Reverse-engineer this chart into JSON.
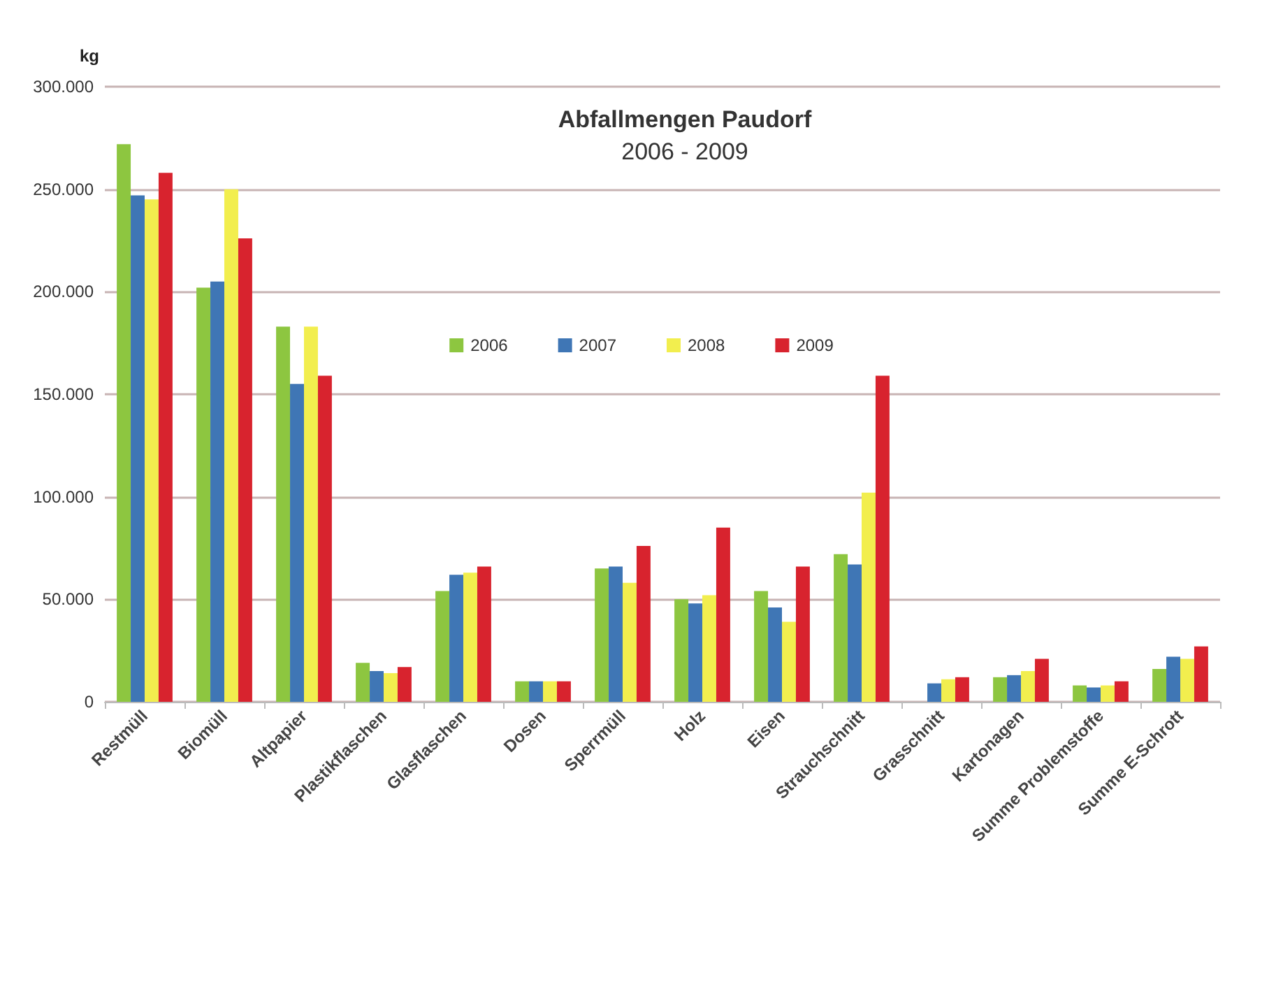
{
  "chart_data": {
    "type": "bar",
    "title": "Abfallmengen Paudorf",
    "subtitle": "2006 - 2009",
    "ylabel": "kg",
    "categories": [
      "Restmüll",
      "Biomüll",
      "Altpapier",
      "Plastikflaschen",
      "Glasflaschen",
      "Dosen",
      "Sperrmüll",
      "Holz",
      "Eisen",
      "Strauchschnitt",
      "Grasschnitt",
      "Kartonagen",
      "Summe Problemstoffe",
      "Summe E-Schrott"
    ],
    "series": [
      {
        "name": "2006",
        "color": "#8dc640",
        "values": [
          272000,
          202000,
          183000,
          19000,
          54000,
          10000,
          65000,
          50000,
          54000,
          72000,
          0,
          12000,
          8000,
          16000
        ]
      },
      {
        "name": "2007",
        "color": "#3f76b5",
        "values": [
          247000,
          205000,
          155000,
          15000,
          62000,
          10000,
          66000,
          48000,
          46000,
          67000,
          9000,
          13000,
          7000,
          22000
        ]
      },
      {
        "name": "2008",
        "color": "#f2ee4e",
        "values": [
          245000,
          250000,
          183000,
          14000,
          63000,
          10000,
          58000,
          52000,
          39000,
          102000,
          11000,
          15000,
          8000,
          21000
        ]
      },
      {
        "name": "2009",
        "color": "#d8232e",
        "values": [
          258000,
          226000,
          159000,
          17000,
          66000,
          10000,
          76000,
          85000,
          66000,
          159000,
          12000,
          21000,
          10000,
          27000
        ]
      }
    ],
    "ylim": [
      0,
      300000
    ],
    "yticks": [
      {
        "value": 0,
        "label": "0"
      },
      {
        "value": 50000,
        "label": "50.000"
      },
      {
        "value": 100000,
        "label": "100.000"
      },
      {
        "value": 150000,
        "label": "150.000"
      },
      {
        "value": 200000,
        "label": "200.000"
      },
      {
        "value": 250000,
        "label": "250.000"
      },
      {
        "value": 300000,
        "label": "300.000"
      }
    ],
    "grid": "y",
    "legend": "top"
  }
}
